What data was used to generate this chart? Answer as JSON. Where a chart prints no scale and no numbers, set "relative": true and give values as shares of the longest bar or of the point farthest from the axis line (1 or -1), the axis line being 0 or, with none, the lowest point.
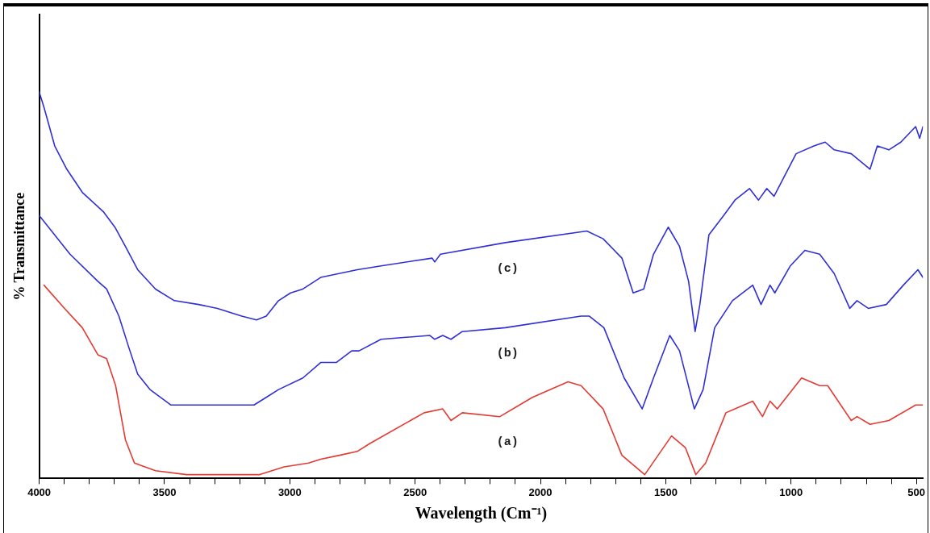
{
  "chart_data": {
    "type": "line",
    "xlabel": "Wavelength (Cm⁻¹)",
    "ylabel": "% Transmittance",
    "relative": true,
    "xlim": [
      4000,
      474
    ],
    "xticks": [
      4000,
      {
        "value": 3900,
        "label": null
      },
      {
        "value": 3800,
        "label": null
      },
      {
        "value": 3700,
        "label": null
      },
      {
        "value": 3600,
        "label": null
      },
      3500,
      {
        "value": 3400,
        "label": null
      },
      {
        "value": 3300,
        "label": null
      },
      {
        "value": 3200,
        "label": null
      },
      {
        "value": 3100,
        "label": null
      },
      3000,
      {
        "value": 2900,
        "label": null
      },
      {
        "value": 2800,
        "label": null
      },
      {
        "value": 2700,
        "label": null
      },
      {
        "value": 2600,
        "label": null
      },
      2500,
      {
        "value": 2400,
        "label": null
      },
      {
        "value": 2300,
        "label": null
      },
      {
        "value": 2200,
        "label": null
      },
      {
        "value": 2100,
        "label": null
      },
      2000,
      {
        "value": 1900,
        "label": null
      },
      {
        "value": 1800,
        "label": null
      },
      {
        "value": 1700,
        "label": null
      },
      {
        "value": 1600,
        "label": null
      },
      1500,
      {
        "value": 1400,
        "label": null
      },
      {
        "value": 1300,
        "label": null
      },
      {
        "value": 1200,
        "label": null
      },
      {
        "value": 1100,
        "label": null
      },
      1000,
      {
        "value": 900,
        "label": null
      },
      {
        "value": 800,
        "label": null
      },
      {
        "value": 700,
        "label": null
      },
      {
        "value": 600,
        "label": null
      },
      500
    ],
    "grid": false,
    "legend": false,
    "marker": "none",
    "line_style": "solid",
    "series": [
      {
        "name": "(c)",
        "color": "#2f2fd8",
        "x": [
          4000,
          3981,
          3938,
          3890,
          3828,
          3744,
          3698,
          3656,
          3607,
          3536,
          3461,
          3364,
          3289,
          3192,
          3133,
          3094,
          3045,
          2997,
          2948,
          2877,
          2731,
          2636,
          2432,
          2422,
          2399,
          2140,
          1815,
          1750,
          1675,
          1630,
          1588,
          1549,
          1490,
          1445,
          1409,
          1383,
          1364,
          1328,
          1269,
          1224,
          1166,
          1130,
          1097,
          1068,
          980,
          909,
          864,
          828,
          760,
          685,
          656,
          610,
          562,
          503,
          487,
          474
        ],
        "values": [
          1.0,
          0.96,
          0.86,
          0.8,
          0.74,
          0.69,
          0.65,
          0.6,
          0.54,
          0.49,
          0.46,
          0.45,
          0.44,
          0.42,
          0.41,
          0.42,
          0.46,
          0.48,
          0.49,
          0.52,
          0.54,
          0.55,
          0.57,
          0.56,
          0.58,
          0.61,
          0.64,
          0.62,
          0.57,
          0.48,
          0.49,
          0.58,
          0.65,
          0.6,
          0.51,
          0.38,
          0.45,
          0.63,
          0.68,
          0.72,
          0.75,
          0.72,
          0.75,
          0.73,
          0.84,
          0.86,
          0.87,
          0.85,
          0.84,
          0.8,
          0.86,
          0.85,
          0.87,
          0.91,
          0.88,
          0.91
        ]
      },
      {
        "name": "(b)",
        "color": "#2f2fd8",
        "x": [
          4000,
          3877,
          3766,
          3731,
          3682,
          3643,
          3607,
          3558,
          3474,
          3390,
          3289,
          3143,
          3094,
          3045,
          2948,
          2877,
          2815,
          2753,
          2724,
          2636,
          2442,
          2422,
          2390,
          2357,
          2312,
          2140,
          1838,
          1805,
          1747,
          1666,
          1594,
          1549,
          1484,
          1445,
          1386,
          1351,
          1305,
          1234,
          1153,
          1120,
          1084,
          1065,
          1003,
          945,
          886,
          828,
          766,
          737,
          692,
          620,
          552,
          494,
          474
        ],
        "values": [
          0.68,
          0.58,
          0.51,
          0.49,
          0.42,
          0.34,
          0.27,
          0.23,
          0.19,
          0.19,
          0.19,
          0.19,
          0.21,
          0.23,
          0.26,
          0.3,
          0.3,
          0.33,
          0.33,
          0.36,
          0.37,
          0.36,
          0.37,
          0.36,
          0.38,
          0.39,
          0.42,
          0.42,
          0.39,
          0.26,
          0.18,
          0.26,
          0.37,
          0.33,
          0.18,
          0.23,
          0.39,
          0.46,
          0.5,
          0.45,
          0.5,
          0.48,
          0.55,
          0.59,
          0.58,
          0.53,
          0.44,
          0.46,
          0.44,
          0.45,
          0.5,
          0.54,
          0.52
        ]
      },
      {
        "name": "(a)",
        "color": "#e33a32",
        "x": [
          3981,
          3899,
          3828,
          3766,
          3731,
          3695,
          3656,
          3620,
          3536,
          3412,
          3120,
          3023,
          2925,
          2877,
          2802,
          2731,
          2682,
          2464,
          2390,
          2357,
          2312,
          2162,
          2032,
          1890,
          1838,
          1750,
          1675,
          1584,
          1477,
          1422,
          1380,
          1341,
          1260,
          1153,
          1114,
          1084,
          1055,
          958,
          886,
          854,
          760,
          737,
          685,
          610,
          503,
          474
        ],
        "values": [
          0.5,
          0.44,
          0.39,
          0.32,
          0.31,
          0.24,
          0.1,
          0.04,
          0.02,
          0.01,
          0.01,
          0.03,
          0.04,
          0.05,
          0.06,
          0.07,
          0.09,
          0.17,
          0.18,
          0.15,
          0.17,
          0.16,
          0.21,
          0.25,
          0.24,
          0.18,
          0.06,
          0.01,
          0.11,
          0.08,
          0.01,
          0.04,
          0.17,
          0.2,
          0.16,
          0.2,
          0.18,
          0.26,
          0.24,
          0.24,
          0.15,
          0.16,
          0.14,
          0.15,
          0.19,
          0.19
        ]
      }
    ]
  }
}
